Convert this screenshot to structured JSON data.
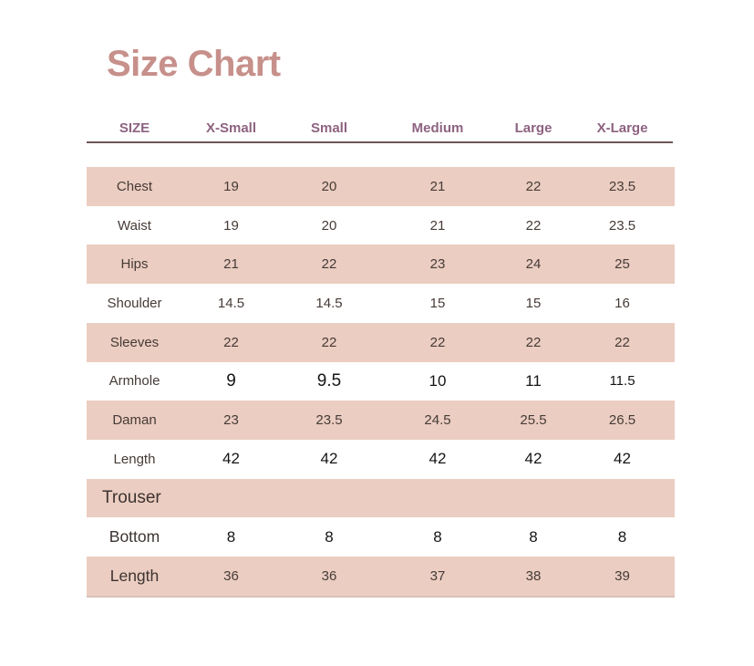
{
  "title": "Size Chart",
  "theme": {
    "background": "#ffffff",
    "title_color": "#c7908b",
    "header_text_color": "#8d6380",
    "header_rule_color": "#6d5654",
    "row_shade_color": "#ebcdc1",
    "body_text_color": "#463b37",
    "edited_text_color": "#151515",
    "bottom_edge_color": "#d9c3bb"
  },
  "size_chart": {
    "columns": [
      "SIZE",
      "X-Small",
      "Small",
      "Medium",
      "Large",
      "X-Large"
    ],
    "rows": [
      {
        "label": "Chest",
        "values": [
          "19",
          "20",
          "21",
          "22",
          "23.5"
        ]
      },
      {
        "label": "Waist",
        "values": [
          "19",
          "20",
          "21",
          "22",
          "23.5"
        ]
      },
      {
        "label": "Hips",
        "values": [
          "21",
          "22",
          "23",
          "24",
          "25"
        ]
      },
      {
        "label": "Shoulder",
        "values": [
          "14.5",
          "14.5",
          "15",
          "15",
          "16"
        ]
      },
      {
        "label": "Sleeves",
        "values": [
          "22",
          "22",
          "22",
          "22",
          "22"
        ]
      },
      {
        "label": "Armhole",
        "values": [
          "9",
          "9.5",
          "10",
          "11",
          "11.5"
        ],
        "black_values": true,
        "value_sizes": [
          "lg",
          "lg",
          "md",
          "md",
          "sm"
        ]
      },
      {
        "label": "Daman",
        "values": [
          "23",
          "23.5",
          "24.5",
          "25.5",
          "26.5"
        ]
      },
      {
        "label": "Length",
        "values": [
          "42",
          "42",
          "42",
          "42",
          "42"
        ],
        "black_values": true
      },
      {
        "label": "Trouser",
        "values": [],
        "section": true
      },
      {
        "label": "Bottom",
        "values": [
          "8",
          "8",
          "8",
          "8",
          "8"
        ],
        "black_values": true,
        "large_label": true
      },
      {
        "label": "Length",
        "values": [
          "36",
          "36",
          "37",
          "38",
          "39"
        ],
        "large_label": true
      }
    ]
  }
}
